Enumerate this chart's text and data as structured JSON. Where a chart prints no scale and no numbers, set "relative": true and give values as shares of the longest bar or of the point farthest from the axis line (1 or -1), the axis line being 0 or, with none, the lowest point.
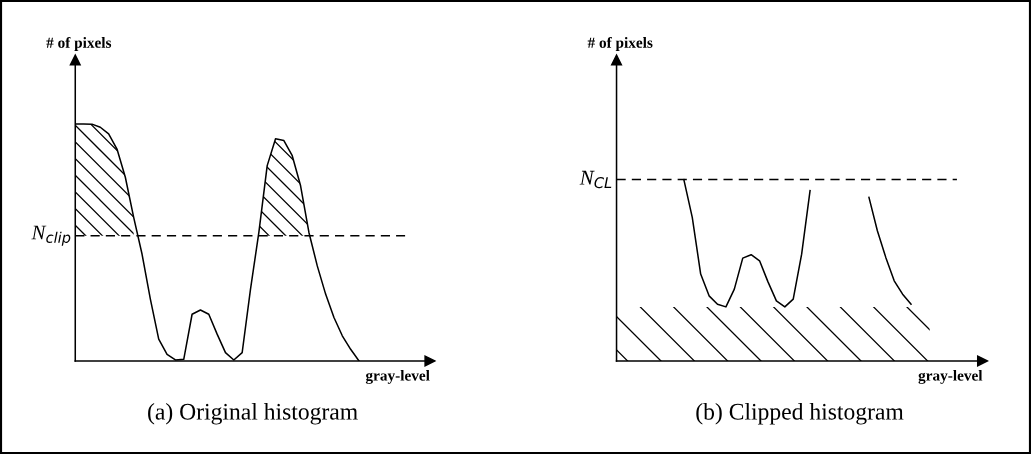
{
  "chart_data": [
    {
      "type": "line",
      "title": "(a) Original histogram",
      "xlabel": "gray-level",
      "ylabel": "# of pixels",
      "relative": true,
      "grid": false,
      "legend": false,
      "marker": "none",
      "line_style": "solid",
      "categories": [
        null,
        null,
        null,
        null,
        null,
        null,
        null,
        null,
        null,
        null,
        null,
        null,
        null,
        null,
        null,
        null,
        null,
        null,
        null,
        null,
        null,
        null,
        null,
        null,
        null,
        null,
        null,
        null,
        null,
        null,
        null,
        null,
        null,
        null,
        null,
        null,
        null,
        null,
        null,
        null,
        null,
        null,
        null
      ],
      "series": [
        {
          "color": "#000000",
          "values": [
            1.0,
            1.0,
            0.999,
            0.986,
            0.958,
            0.894,
            0.775,
            0.606,
            0.451,
            0.261,
            0.092,
            0.028,
            0.004,
            0.007,
            0.197,
            0.215,
            0.197,
            0.113,
            0.035,
            0.004,
            0.035,
            0.303,
            0.542,
            0.824,
            0.937,
            0.93,
            0.866,
            0.739,
            0.542,
            0.401,
            0.282,
            0.183,
            0.106,
            0.049,
            0.0,
            null,
            null,
            null,
            null,
            null,
            null,
            null,
            null
          ]
        },
        {
          "type": "area",
          "color": "#000000",
          "values": [
            1.0,
            1.0,
            0.999,
            0.986,
            0.958,
            0.894,
            0.775,
            0.606,
            null,
            null,
            null,
            null,
            null,
            null,
            null,
            null,
            null,
            null,
            null,
            null,
            null,
            null,
            0.542,
            0.824,
            0.937,
            0.93,
            0.866,
            0.739,
            0.542,
            null,
            null,
            null,
            null,
            null,
            null,
            null,
            null,
            null,
            null,
            null,
            null,
            null,
            null
          ]
        }
      ],
      "ref_lines": [
        {
          "axis": "y",
          "value": 0.528,
          "label": "N$_{clip}$",
          "color": "#000000",
          "line_style": "dashed"
        }
      ]
    },
    {
      "type": "line",
      "title": "(b) Clipped histogram",
      "xlabel": "gray-level",
      "ylabel": "# of pixels",
      "relative": true,
      "grid": false,
      "legend": false,
      "marker": "none",
      "line_style": "solid",
      "categories": [
        null,
        null,
        null,
        null,
        null,
        null,
        null,
        null,
        null,
        null,
        null,
        null,
        null,
        null,
        null,
        null,
        null,
        null,
        null,
        null,
        null,
        null,
        null,
        null,
        null,
        null,
        null,
        null,
        null,
        null,
        null,
        null,
        null,
        null,
        null,
        null,
        null,
        null,
        null,
        null,
        null,
        null,
        null,
        null
      ],
      "series": [
        {
          "color": "#000000",
          "values": [
            null,
            null,
            null,
            null,
            null,
            null,
            null,
            null,
            1.0,
            0.792,
            0.479,
            0.359,
            0.313,
            0.298,
            0.396,
            0.567,
            0.586,
            0.552,
            0.436,
            0.331,
            0.298,
            0.341,
            0.589,
            0.939,
            null,
            null,
            null,
            null,
            null,
            null,
            null,
            null,
            null,
            null,
            null,
            null,
            null,
            null,
            null,
            null,
            null,
            null,
            null,
            null
          ]
        },
        {
          "color": "#000000",
          "values": [
            null,
            null,
            null,
            null,
            null,
            null,
            null,
            null,
            null,
            null,
            null,
            null,
            null,
            null,
            null,
            null,
            null,
            null,
            null,
            null,
            null,
            null,
            null,
            null,
            null,
            null,
            null,
            null,
            null,
            null,
            0.902,
            0.718,
            0.571,
            0.442,
            0.368,
            0.313,
            null,
            null,
            null,
            null,
            null,
            null,
            null,
            null
          ]
        }
      ],
      "bands": [
        {
          "axis": "y",
          "from": 0,
          "to": 0.298,
          "color": "#000000"
        }
      ],
      "ref_lines": [
        {
          "axis": "y",
          "value": 1,
          "label": "N$_{CL}$",
          "color": "#000000",
          "line_style": "dashed"
        }
      ]
    }
  ]
}
